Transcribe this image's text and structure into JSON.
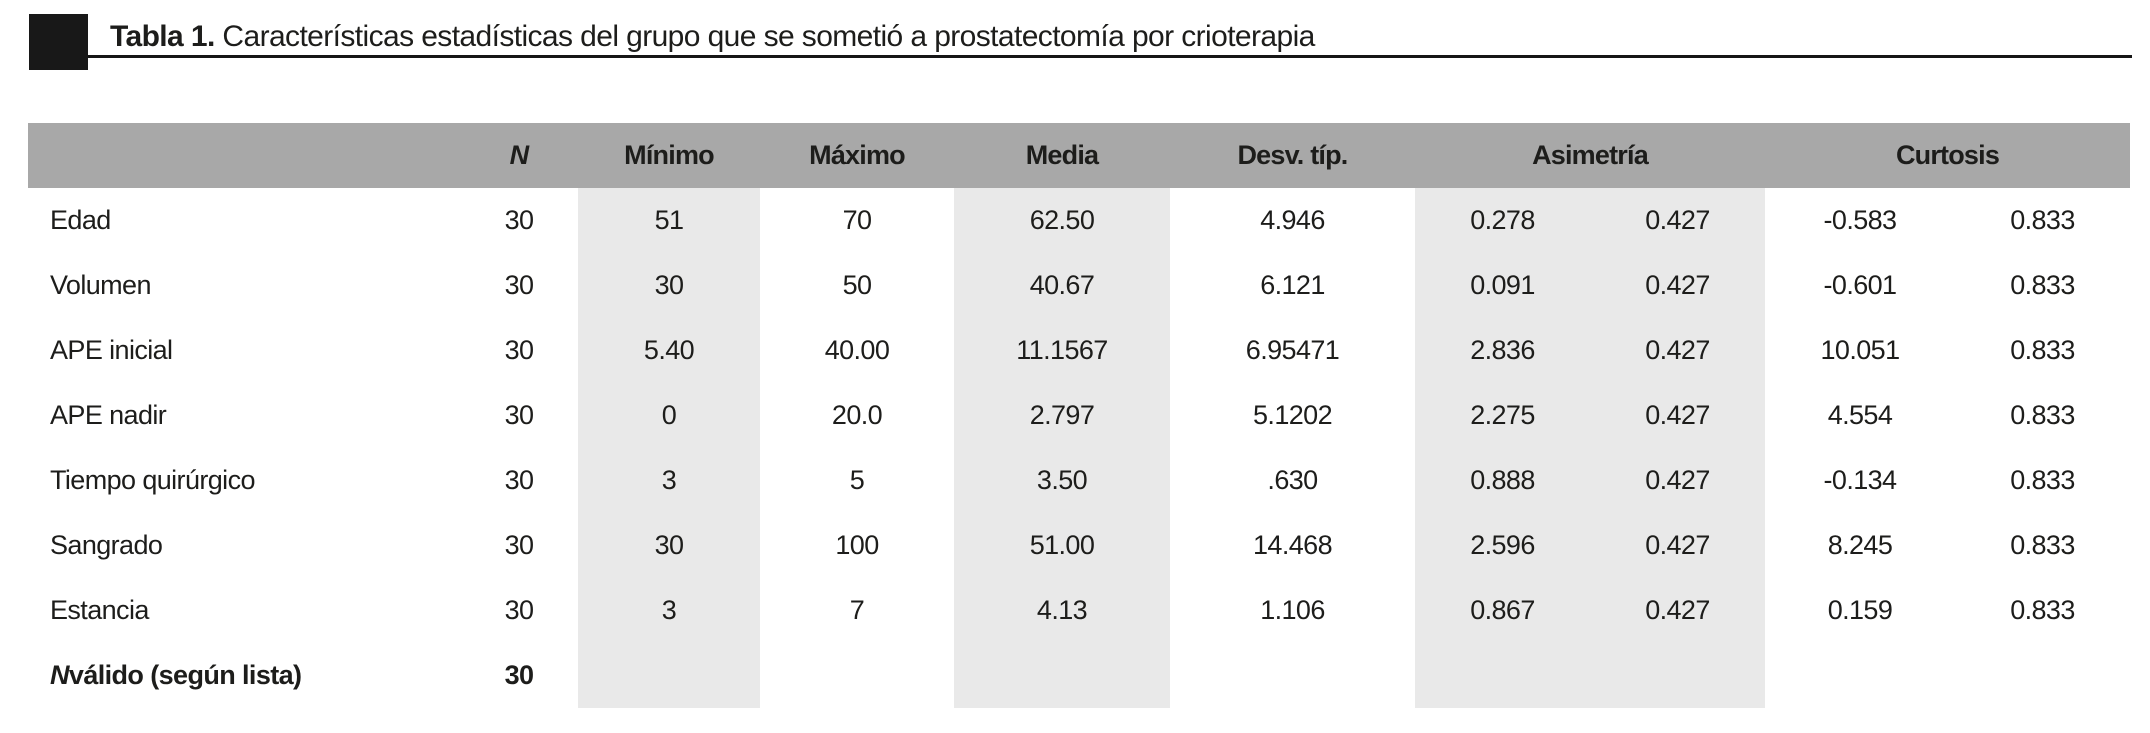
{
  "title": {
    "label": "Tabla 1.",
    "text": " Características estadísticas del grupo que se sometió a prostatectomía por crioterapia"
  },
  "table": {
    "headers": {
      "rowname": "",
      "n": "N",
      "min": "Mínimo",
      "max": "Máximo",
      "media": "Media",
      "desv": "Desv. típ.",
      "asimetria": "Asimetría",
      "curtosis": "Curtosis"
    },
    "rows": [
      {
        "label": "Edad",
        "values": [
          "30",
          "51",
          "70",
          "62.50",
          "4.946",
          "0.278",
          "0.427",
          "-0.583",
          "0.833"
        ]
      },
      {
        "label": "Volumen",
        "values": [
          "30",
          "30",
          "50",
          "40.67",
          "6.121",
          "0.091",
          "0.427",
          "-0.601",
          "0.833"
        ]
      },
      {
        "label": "APE inicial",
        "values": [
          "30",
          "5.40",
          "40.00",
          "11.1567",
          "6.95471",
          "2.836",
          "0.427",
          "10.051",
          "0.833"
        ]
      },
      {
        "label": "APE nadir",
        "values": [
          "30",
          "0",
          "20.0",
          "2.797",
          "5.1202",
          "2.275",
          "0.427",
          "4.554",
          "0.833"
        ]
      },
      {
        "label": "Tiempo quirúrgico",
        "values": [
          "30",
          "3",
          "5",
          "3.50",
          ".630",
          "0.888",
          "0.427",
          "-0.134",
          "0.833"
        ]
      },
      {
        "label": "Sangrado",
        "values": [
          "30",
          "30",
          "100",
          "51.00",
          "14.468",
          "2.596",
          "0.427",
          "8.245",
          "0.833"
        ]
      },
      {
        "label": "Estancia",
        "values": [
          "30",
          "3",
          "7",
          "4.13",
          "1.106",
          "0.867",
          "0.427",
          "0.159",
          "0.833"
        ]
      },
      {
        "label_italic": "N",
        "label": " válido (según lista)",
        "bold": true,
        "values": [
          "30",
          "",
          "",
          "",
          "",
          "",
          "",
          "",
          ""
        ]
      }
    ],
    "colors": {
      "header_bg": "#a8a8a8",
      "band_bg": "#e9e9e9",
      "text": "#1d1d1b",
      "marker": "#181818"
    }
  }
}
